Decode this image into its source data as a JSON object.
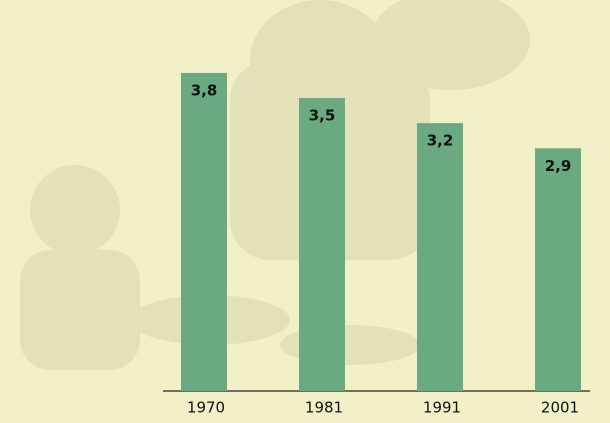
{
  "chart_data": {
    "type": "bar",
    "categories": [
      "1970",
      "1981",
      "1991",
      "2001"
    ],
    "values": [
      3.8,
      3.5,
      3.2,
      2.9
    ],
    "value_labels": [
      "3,8",
      "3,5",
      "3,2",
      "2,9"
    ],
    "color": "#6aaa80"
  }
}
